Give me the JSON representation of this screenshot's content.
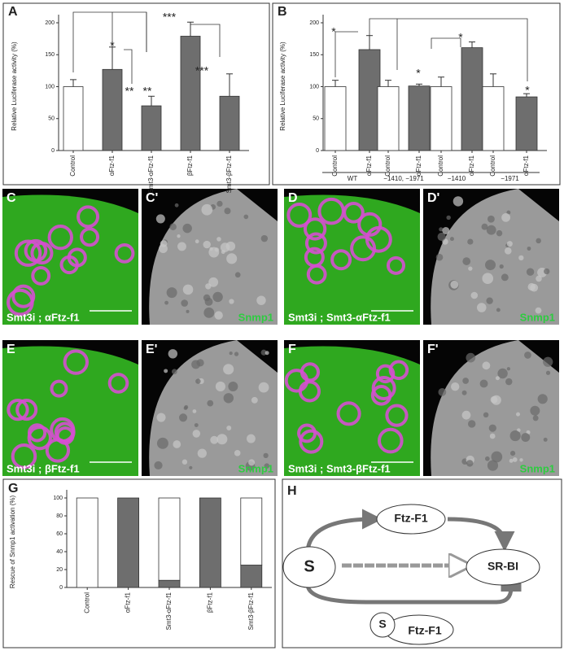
{
  "chart_data": [
    {
      "type": "bar",
      "panel": "A",
      "ylabel": "Relative Luciferase activity (%)",
      "categories": [
        "Control",
        "αFtz-f1",
        "Smt3-αFtz-f1",
        "βFtz-f1",
        "Smt3-βFtz-f1"
      ],
      "values": [
        100,
        127,
        70,
        179,
        85
      ],
      "errors": [
        11,
        35,
        15,
        22,
        35
      ],
      "colors": [
        "#ffffff",
        "#6e6e6e",
        "#6e6e6e",
        "#6e6e6e",
        "#6e6e6e"
      ],
      "ylim": [
        0,
        200
      ],
      "yticks": [
        0,
        50,
        100,
        150,
        200
      ],
      "annotations": [
        "*",
        "**",
        "**",
        "***",
        "***"
      ]
    },
    {
      "type": "bar",
      "panel": "B",
      "ylabel": "Relative Luciferase activity (%)",
      "categories": [
        "Control",
        "αFtz-f1",
        "Control",
        "αFtz-f1",
        "Control",
        "αFtz-f1",
        "Control",
        "αFtz-f1"
      ],
      "groups": [
        "WT",
        "−1410, −1971",
        "−1410",
        "−1971"
      ],
      "values": [
        100,
        158,
        100,
        101,
        100,
        161,
        100,
        84
      ],
      "errors": [
        10,
        22,
        10,
        3,
        15,
        9,
        20,
        5
      ],
      "colors": [
        "#ffffff",
        "#6e6e6e",
        "#ffffff",
        "#6e6e6e",
        "#ffffff",
        "#6e6e6e",
        "#ffffff",
        "#6e6e6e"
      ],
      "ylim": [
        0,
        200
      ],
      "yticks": [
        0,
        50,
        100,
        150,
        200
      ],
      "annotations": [
        "*",
        "*",
        "*",
        "*"
      ]
    },
    {
      "type": "stacked-bar",
      "panel": "G",
      "ylabel": "Rescue of Snmp1 activation (%)",
      "categories": [
        "Control",
        "αFtz-f1",
        "Smt3-αFtz-f1",
        "βFtz-f1",
        "Smt3-βFtz-f1"
      ],
      "series": [
        {
          "color": "#6e6e6e",
          "values": [
            0,
            100,
            8,
            100,
            25
          ]
        },
        {
          "color": "#ffffff",
          "values": [
            100,
            0,
            92,
            0,
            75
          ]
        }
      ],
      "ylim": [
        0,
        100
      ],
      "yticks": [
        0,
        20,
        40,
        60,
        80,
        100
      ]
    }
  ],
  "panels": [
    {
      "letter": "C",
      "caption": "Smt3i ; αFtz-f1"
    },
    {
      "letter": "C'",
      "caption": "Snmp1"
    },
    {
      "letter": "D",
      "caption": "Smt3i ; Smt3-αFtz-f1"
    },
    {
      "letter": "D'",
      "caption": "Snmp1"
    },
    {
      "letter": "E",
      "caption": "Smt3i ; βFtz-f1"
    },
    {
      "letter": "E'",
      "caption": "Snmp1"
    },
    {
      "letter": "F",
      "caption": "Smt3i ; Smt3-βFtz-f1"
    },
    {
      "letter": "F'",
      "caption": "Snmp1"
    }
  ],
  "diagram": {
    "letter": "H",
    "nodes": [
      "Ftz-F1",
      "S",
      "SR-BI",
      "S",
      "Ftz-F1"
    ]
  }
}
